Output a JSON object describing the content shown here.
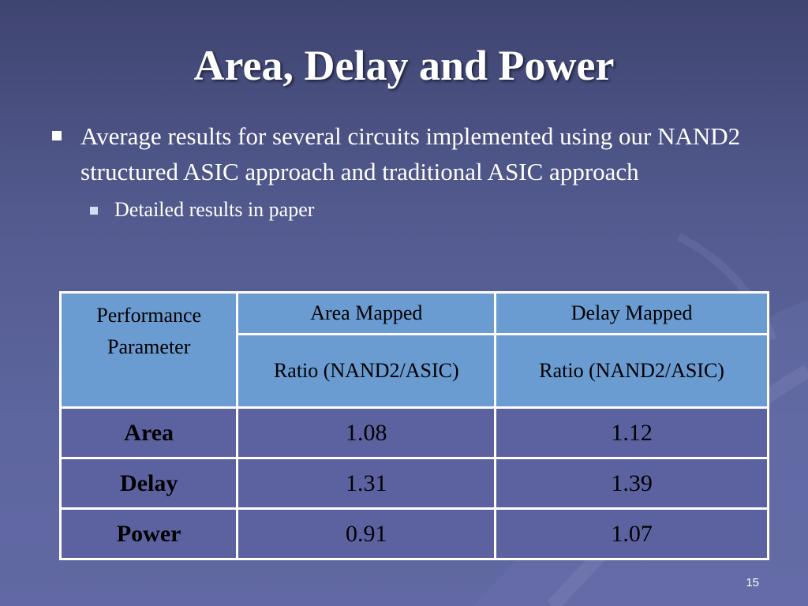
{
  "slide": {
    "title": "Area, Delay and Power",
    "bullets": [
      {
        "text": "Average results for several circuits implemented using our NAND2 structured ASIC approach and traditional ASIC approach",
        "sub": [
          "Detailed results in paper"
        ]
      }
    ],
    "page_number": "15"
  },
  "table": {
    "header": {
      "param_label": "Performance Parameter",
      "col1_label": "Area Mapped",
      "col2_label": "Delay Mapped",
      "col1_sub": "Ratio (NAND2/ASIC)",
      "col2_sub": "Ratio (NAND2/ASIC)"
    },
    "rows": [
      {
        "param": "Area",
        "area_mapped": "1.08",
        "delay_mapped": "1.12"
      },
      {
        "param": "Delay",
        "area_mapped": "1.31",
        "delay_mapped": "1.39"
      },
      {
        "param": "Power",
        "area_mapped": "0.91",
        "delay_mapped": "1.07"
      }
    ]
  },
  "colors": {
    "background": "#5e66a0",
    "header_fill": "#6a9bd1",
    "body_fill": "#5c62a0",
    "border": "#ffffff"
  }
}
